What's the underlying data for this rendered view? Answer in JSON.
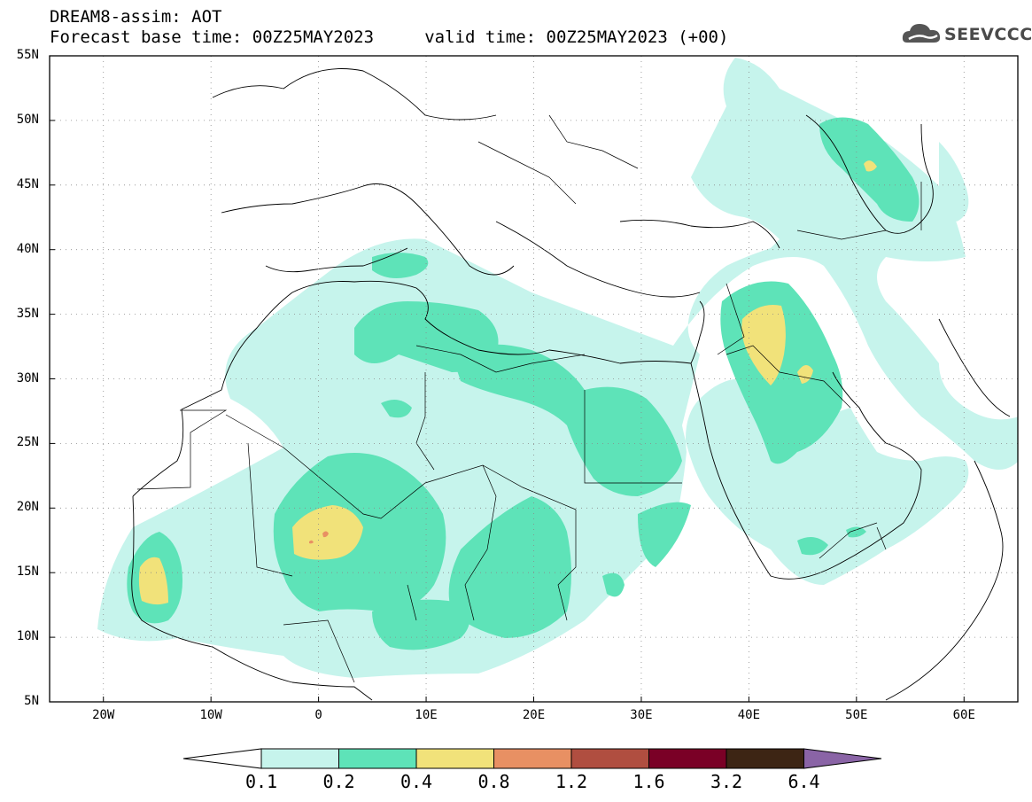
{
  "header": {
    "line1": "DREAM8-assim: AOT",
    "line2": "Forecast base time: 00Z25MAY2023     valid time: 00Z25MAY2023 (+00)"
  },
  "logo": {
    "text": "SEEVCCC",
    "icon": "cloud-icon"
  },
  "map": {
    "lon_range": [
      -25,
      65
    ],
    "lat_range": [
      5,
      55
    ],
    "lat_ticks": [
      "55N",
      "50N",
      "45N",
      "40N",
      "35N",
      "30N",
      "25N",
      "20N",
      "15N",
      "10N",
      "5N"
    ],
    "lon_ticks": [
      "20W",
      "10W",
      "0",
      "10E",
      "20E",
      "30E",
      "40E",
      "50E",
      "60E"
    ],
    "grid": "dotted",
    "colors": {
      "c01": "#c6f4ec",
      "c02": "#5ee3b8",
      "c04": "#f1e27a",
      "c08": "#e89063",
      "land_line": "#000000"
    }
  },
  "colorbar": {
    "bins": [
      "#ffffff",
      "#c6f4ec",
      "#5ee3b8",
      "#f1e27a",
      "#e89063",
      "#b04e40",
      "#7a0026",
      "#3d2514",
      "#8a64a6"
    ],
    "labels": [
      "0.1",
      "0.2",
      "0.4",
      "0.8",
      "1.2",
      "1.6",
      "3.2",
      "6.4"
    ]
  }
}
